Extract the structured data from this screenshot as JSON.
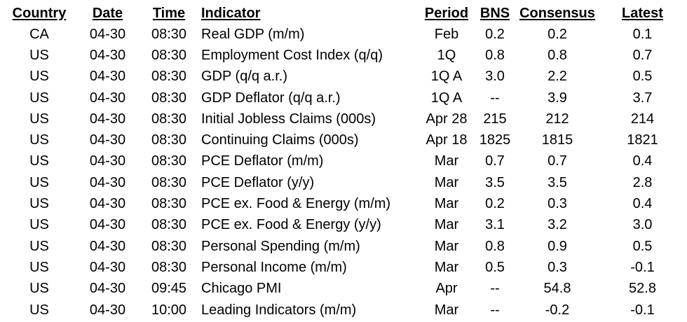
{
  "columns": {
    "country": "Country",
    "date": "Date",
    "time": "Time",
    "indicator": "Indicator",
    "period": "Period",
    "bns": "BNS",
    "consensus": "Consensus",
    "latest": "Latest"
  },
  "rows": [
    {
      "country": "CA",
      "date": "04-30",
      "time": "08:30",
      "indicator": "Real GDP (m/m)",
      "period": "Feb",
      "bns": "0.2",
      "consensus": "0.2",
      "latest": "0.1"
    },
    {
      "country": "US",
      "date": "04-30",
      "time": "08:30",
      "indicator": "Employment Cost Index (q/q)",
      "period": "1Q",
      "bns": "0.8",
      "consensus": "0.8",
      "latest": "0.7"
    },
    {
      "country": "US",
      "date": "04-30",
      "time": "08:30",
      "indicator": "GDP (q/q a.r.)",
      "period": "1Q A",
      "bns": "3.0",
      "consensus": "2.2",
      "latest": "0.5"
    },
    {
      "country": "US",
      "date": "04-30",
      "time": "08:30",
      "indicator": "GDP Deflator (q/q a.r.)",
      "period": "1Q A",
      "bns": "--",
      "consensus": "3.9",
      "latest": "3.7"
    },
    {
      "country": "US",
      "date": "04-30",
      "time": "08:30",
      "indicator": "Initial Jobless Claims (000s)",
      "period": "Apr 28",
      "bns": "215",
      "consensus": "212",
      "latest": "214"
    },
    {
      "country": "US",
      "date": "04-30",
      "time": "08:30",
      "indicator": "Continuing Claims (000s)",
      "period": "Apr 18",
      "bns": "1825",
      "consensus": "1815",
      "latest": "1821"
    },
    {
      "country": "US",
      "date": "04-30",
      "time": "08:30",
      "indicator": "PCE Deflator (m/m)",
      "period": "Mar",
      "bns": "0.7",
      "consensus": "0.7",
      "latest": "0.4"
    },
    {
      "country": "US",
      "date": "04-30",
      "time": "08:30",
      "indicator": "PCE Deflator (y/y)",
      "period": "Mar",
      "bns": "3.5",
      "consensus": "3.5",
      "latest": "2.8"
    },
    {
      "country": "US",
      "date": "04-30",
      "time": "08:30",
      "indicator": "PCE ex. Food & Energy (m/m)",
      "period": "Mar",
      "bns": "0.2",
      "consensus": "0.3",
      "latest": "0.4"
    },
    {
      "country": "US",
      "date": "04-30",
      "time": "08:30",
      "indicator": "PCE ex. Food & Energy (y/y)",
      "period": "Mar",
      "bns": "3.1",
      "consensus": "3.2",
      "latest": "3.0"
    },
    {
      "country": "US",
      "date": "04-30",
      "time": "08:30",
      "indicator": "Personal Spending (m/m)",
      "period": "Mar",
      "bns": "0.8",
      "consensus": "0.9",
      "latest": "0.5"
    },
    {
      "country": "US",
      "date": "04-30",
      "time": "08:30",
      "indicator": "Personal Income (m/m)",
      "period": "Mar",
      "bns": "0.5",
      "consensus": "0.3",
      "latest": "-0.1"
    },
    {
      "country": "US",
      "date": "04-30",
      "time": "09:45",
      "indicator": "Chicago PMI",
      "period": "Apr",
      "bns": "--",
      "consensus": "54.8",
      "latest": "52.8"
    },
    {
      "country": "US",
      "date": "04-30",
      "time": "10:00",
      "indicator": "Leading Indicators (m/m)",
      "period": "Mar",
      "bns": "--",
      "consensus": "-0.2",
      "latest": "-0.1"
    }
  ]
}
